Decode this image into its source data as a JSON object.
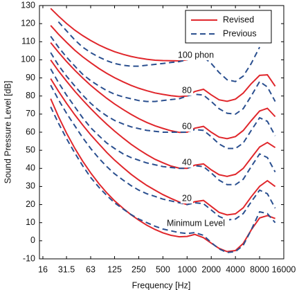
{
  "chart_data": {
    "type": "line",
    "x_scale": "log",
    "xlabel": "Frequency [Hz]",
    "ylabel": "Sound Pressure Level [dB]",
    "x": [
      20,
      25,
      31.5,
      40,
      50,
      63,
      80,
      100,
      125,
      160,
      200,
      250,
      315,
      400,
      500,
      630,
      800,
      1000,
      1250,
      1600,
      2000,
      2500,
      3150,
      4000,
      5000,
      6300,
      8000,
      10000,
      12500
    ],
    "xlim": [
      14.5,
      16000
    ],
    "xticks": [
      16,
      31.5,
      63,
      125,
      250,
      500,
      1000,
      2000,
      4000,
      8000,
      16000
    ],
    "ylim": [
      -10,
      130
    ],
    "yticks": [
      -10,
      0,
      10,
      20,
      30,
      40,
      50,
      60,
      70,
      80,
      90,
      100,
      110,
      120,
      130
    ],
    "legend": "upper right",
    "series": [
      {
        "name": "Revised",
        "color": "#e0262b",
        "dashed": false,
        "lines": [
          [
            128.4,
            124.2,
            120.1,
            116.4,
            113.4,
            110.7,
            108.2,
            106.2,
            104.5,
            103.0,
            101.9,
            101.0,
            100.3,
            99.8,
            99.6,
            99.5,
            99.4,
            100.0,
            null,
            null,
            null,
            null,
            null,
            null,
            null,
            null,
            null,
            null,
            null
          ],
          [
            119.0,
            114.2,
            109.7,
            105.3,
            101.7,
            98.4,
            95.2,
            92.5,
            90.1,
            87.8,
            85.9,
            84.3,
            82.9,
            81.7,
            80.9,
            80.2,
            79.7,
            80.0,
            82.5,
            83.7,
            80.6,
            77.9,
            77.1,
            78.3,
            81.6,
            86.8,
            91.4,
            91.7,
            85.4
          ],
          [
            109.5,
            104.2,
            99.1,
            94.2,
            90.0,
            85.9,
            82.1,
            78.7,
            75.6,
            72.5,
            69.9,
            67.5,
            65.4,
            63.5,
            62.1,
            60.8,
            59.9,
            60.0,
            62.2,
            63.2,
            60.0,
            57.3,
            56.4,
            57.6,
            60.9,
            66.4,
            71.7,
            73.2,
            68.6
          ],
          [
            99.9,
            93.9,
            88.2,
            82.6,
            77.8,
            73.1,
            68.5,
            64.4,
            60.6,
            56.7,
            53.4,
            50.4,
            47.6,
            45.0,
            43.1,
            41.3,
            40.1,
            40.0,
            41.8,
            42.5,
            39.2,
            36.5,
            35.6,
            36.7,
            40.0,
            45.8,
            51.8,
            54.3,
            51.5
          ],
          [
            89.6,
            82.7,
            76.0,
            69.6,
            64.0,
            58.6,
            53.5,
            48.8,
            44.6,
            40.4,
            36.8,
            33.6,
            30.6,
            27.9,
            25.5,
            23.4,
            21.4,
            20.0,
            21.6,
            22.3,
            19.0,
            15.7,
            14.3,
            14.9,
            18.2,
            24.3,
            30.1,
            33.2,
            30.0
          ],
          [
            78.5,
            68.7,
            59.5,
            51.1,
            44.0,
            37.5,
            31.5,
            26.5,
            22.1,
            17.9,
            14.4,
            11.4,
            8.6,
            6.2,
            4.4,
            3.0,
            2.2,
            2.4,
            3.5,
            1.7,
            -1.3,
            -4.2,
            -6.0,
            -5.4,
            -1.5,
            6.0,
            12.6,
            13.9,
            12.3
          ]
        ]
      },
      {
        "name": "Previous",
        "color": "#2a4f8f",
        "dashed": true,
        "lines": [
          [
            null,
            121,
            116,
            111,
            107,
            104,
            101.5,
            99.5,
            98,
            97,
            96.5,
            96.5,
            97,
            97.5,
            98,
            98.5,
            99,
            100,
            101,
            101.5,
            98,
            93,
            89,
            88,
            91,
            98,
            107,
            null,
            null
          ],
          [
            113,
            107,
            101.5,
            96.5,
            92,
            88.5,
            85.5,
            83,
            81,
            79.5,
            78.5,
            77.5,
            77,
            77,
            77.5,
            78,
            78.5,
            80,
            81,
            80.5,
            77,
            73,
            70.5,
            70,
            73,
            80,
            88,
            85,
            77
          ],
          [
            104,
            97,
            91,
            85.5,
            80.5,
            76,
            72,
            69,
            66.5,
            64.5,
            63,
            62,
            61,
            60.5,
            60,
            60,
            60,
            60,
            61.5,
            61,
            57.5,
            53.5,
            51,
            51,
            54,
            61,
            68,
            66,
            58
          ],
          [
            95,
            87.5,
            80.5,
            74,
            68,
            62.5,
            58,
            54,
            51,
            48,
            46,
            44.5,
            43,
            42,
            41,
            40.5,
            40,
            40,
            41.5,
            41,
            37.5,
            33.5,
            31,
            31,
            34,
            41,
            48,
            46,
            38
          ],
          [
            86,
            78,
            70.5,
            63.5,
            57,
            51,
            45.5,
            41,
            37,
            33.5,
            30.5,
            28,
            26,
            24.5,
            23,
            22,
            21,
            20,
            21,
            20.5,
            17,
            13.5,
            11.5,
            12,
            15,
            21.5,
            28,
            26,
            18
          ],
          [
            74,
            65,
            56.5,
            48.5,
            41.5,
            35,
            29.5,
            25,
            21,
            17.5,
            14.5,
            12,
            10,
            8,
            6.5,
            5.5,
            4.5,
            4,
            4.5,
            3,
            -1,
            -4.5,
            -6.5,
            -6,
            -2.5,
            6,
            16,
            15,
            10
          ]
        ]
      }
    ],
    "annotations": [
      "100 phon",
      "80",
      "60",
      "40",
      "20",
      "Minimum Level"
    ]
  }
}
